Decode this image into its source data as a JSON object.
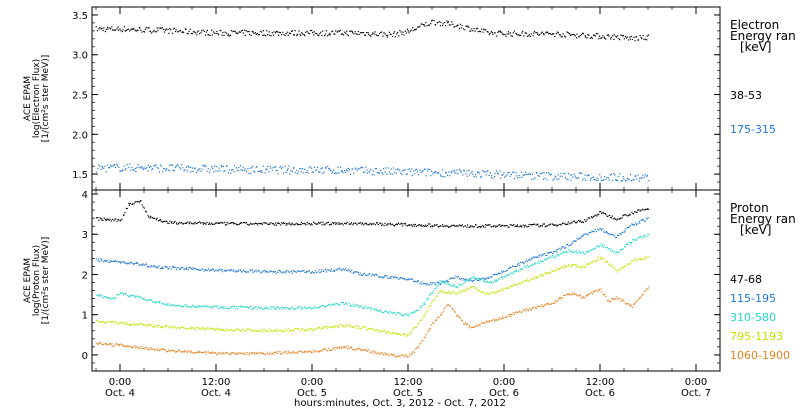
{
  "colors": {
    "black": "#000000",
    "blue": "#1f77d4",
    "cyan": "#22d8c8",
    "yellow": "#c8e000",
    "orange": "#e8821e"
  },
  "x_axis": {
    "label": "hours:minutes, Oct.  3, 2012 - Oct.  7, 2012",
    "ticks": [
      {
        "time": "0:00",
        "date": "Oct. 4",
        "hours": 24
      },
      {
        "time": "12:00",
        "date": "Oct. 4",
        "hours": 36
      },
      {
        "time": "0:00",
        "date": "Oct. 5",
        "hours": 48
      },
      {
        "time": "12:00",
        "date": "Oct. 5",
        "hours": 60
      },
      {
        "time": "0:00",
        "date": "Oct. 6",
        "hours": 72
      },
      {
        "time": "12:00",
        "date": "Oct. 6",
        "hours": 84
      },
      {
        "time": "0:00",
        "date": "Oct. 7",
        "hours": 96
      }
    ]
  },
  "chart_data": [
    {
      "type": "scatter",
      "panel": "electron",
      "ylabel": [
        "ACE EPAM",
        "log(Electron Flux)",
        "[1/(cm²s ster MeV)]"
      ],
      "ylim": [
        1.3,
        3.6
      ],
      "xlim": [
        20.5,
        99
      ],
      "yticks": [
        "1.5",
        "2.0",
        "2.5",
        "3.0",
        "3.5"
      ],
      "legend_title": [
        "Electron",
        "Energy ran",
        "[keV]"
      ],
      "series": [
        {
          "name": "38-53",
          "color": "black",
          "x": [
            21,
            24,
            30,
            36,
            42,
            48,
            54,
            58,
            60,
            63,
            66,
            70,
            74,
            78,
            82,
            86,
            88,
            90
          ],
          "y": [
            3.33,
            3.33,
            3.31,
            3.28,
            3.28,
            3.28,
            3.28,
            3.26,
            3.3,
            3.42,
            3.38,
            3.28,
            3.27,
            3.27,
            3.25,
            3.23,
            3.21,
            3.22
          ]
        },
        {
          "name": "175-315",
          "color": "blue",
          "x": [
            21,
            24,
            30,
            36,
            42,
            48,
            54,
            60,
            66,
            72,
            78,
            84,
            90
          ],
          "y": [
            1.58,
            1.59,
            1.58,
            1.57,
            1.56,
            1.56,
            1.55,
            1.53,
            1.52,
            1.5,
            1.48,
            1.47,
            1.46
          ]
        }
      ]
    },
    {
      "type": "scatter",
      "panel": "proton",
      "ylabel": [
        "ACE EPAM",
        "log(Proton Flux)",
        "[1/(cm²s ster MeV)]"
      ],
      "ylim": [
        -0.4,
        4.1
      ],
      "xlim": [
        20.5,
        99
      ],
      "yticks": [
        "0",
        "1",
        "2",
        "3",
        "4"
      ],
      "legend_title": [
        "Proton",
        "Energy ran",
        "[keV]"
      ],
      "series": [
        {
          "name": "47-68",
          "color": "black",
          "x": [
            21,
            24,
            25,
            26.5,
            27.5,
            30,
            36,
            42,
            48,
            54,
            60,
            66,
            72,
            78,
            82,
            84,
            86,
            88,
            90
          ],
          "y": [
            3.4,
            3.35,
            3.75,
            3.85,
            3.45,
            3.3,
            3.28,
            3.27,
            3.28,
            3.28,
            3.25,
            3.22,
            3.22,
            3.24,
            3.35,
            3.55,
            3.4,
            3.55,
            3.65
          ]
        },
        {
          "name": "115-195",
          "color": "blue",
          "x": [
            21,
            24,
            30,
            36,
            42,
            48,
            52,
            54,
            60,
            62,
            64,
            66,
            68,
            70,
            72,
            74,
            76,
            78,
            80,
            82,
            84,
            86,
            88,
            90
          ],
          "y": [
            2.38,
            2.32,
            2.18,
            2.12,
            2.08,
            2.08,
            2.15,
            2.02,
            1.9,
            1.78,
            1.8,
            1.95,
            1.85,
            1.95,
            2.1,
            2.28,
            2.45,
            2.55,
            2.75,
            3.0,
            3.15,
            2.95,
            3.25,
            3.4
          ]
        },
        {
          "name": "310-580",
          "color": "cyan",
          "x": [
            21,
            23,
            24,
            30,
            36,
            42,
            48,
            52,
            54,
            58,
            60,
            61,
            62,
            63,
            64,
            66,
            68,
            70,
            72,
            74,
            76,
            78,
            80,
            82,
            84,
            86,
            88,
            90
          ],
          "y": [
            1.5,
            1.4,
            1.55,
            1.25,
            1.2,
            1.18,
            1.18,
            1.3,
            1.22,
            1.05,
            1.0,
            1.1,
            1.3,
            1.6,
            1.85,
            1.7,
            1.95,
            1.8,
            1.95,
            2.15,
            2.3,
            2.45,
            2.6,
            2.55,
            2.75,
            2.55,
            2.85,
            3.0
          ]
        },
        {
          "name": "795-1193",
          "color": "yellow",
          "x": [
            21,
            24,
            30,
            36,
            42,
            48,
            52,
            54,
            58,
            60,
            61,
            62,
            63,
            64,
            66,
            68,
            70,
            72,
            74,
            76,
            78,
            80,
            82,
            84,
            86,
            88,
            90
          ],
          "y": [
            0.85,
            0.8,
            0.7,
            0.65,
            0.62,
            0.65,
            0.75,
            0.7,
            0.55,
            0.5,
            0.75,
            1.0,
            1.35,
            1.6,
            1.55,
            1.7,
            1.5,
            1.65,
            1.8,
            1.95,
            2.1,
            2.25,
            2.2,
            2.45,
            2.1,
            2.35,
            2.45
          ]
        },
        {
          "name": "1060-1900",
          "color": "orange",
          "x": [
            21,
            24,
            30,
            36,
            42,
            48,
            52,
            54,
            58,
            60,
            61,
            62,
            63,
            64,
            65,
            66,
            67,
            68,
            70,
            72,
            74,
            76,
            78,
            80,
            82,
            84,
            85,
            86,
            88,
            90
          ],
          "y": [
            0.3,
            0.25,
            0.12,
            0.05,
            0.05,
            0.1,
            0.2,
            0.15,
            0.0,
            -0.02,
            0.15,
            0.45,
            0.8,
            1.0,
            1.3,
            1.0,
            0.8,
            0.7,
            0.85,
            0.95,
            1.1,
            1.2,
            1.3,
            1.55,
            1.45,
            1.65,
            1.35,
            1.45,
            1.2,
            1.7
          ]
        }
      ]
    }
  ]
}
